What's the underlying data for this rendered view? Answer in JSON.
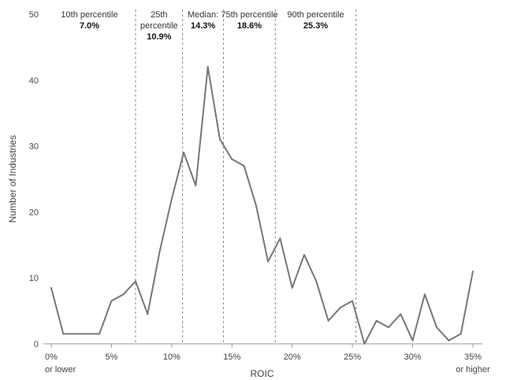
{
  "chart_data": {
    "type": "line",
    "xlabel": "ROIC",
    "ylabel": "Number of Industries",
    "xlim": [
      0,
      35
    ],
    "ylim": [
      0,
      50
    ],
    "grid": false,
    "x_tick_labels": [
      {
        "x": 0,
        "line1": "0%",
        "line2": "or lower"
      },
      {
        "x": 5,
        "line1": "5%",
        "line2": ""
      },
      {
        "x": 10,
        "line1": "10%",
        "line2": ""
      },
      {
        "x": 15,
        "line1": "15%",
        "line2": ""
      },
      {
        "x": 20,
        "line1": "20%",
        "line2": ""
      },
      {
        "x": 25,
        "line1": "25%",
        "line2": ""
      },
      {
        "x": 30,
        "line1": "30%",
        "line2": ""
      },
      {
        "x": 35,
        "line1": "35%",
        "line2": "or higher"
      }
    ],
    "y_ticks": [
      0,
      10,
      20,
      30,
      40,
      50
    ],
    "series": [
      {
        "color": "#777777",
        "x": [
          0,
          1,
          2,
          3,
          4,
          5,
          6,
          7,
          8,
          9,
          10,
          11,
          12,
          13,
          14,
          15,
          16,
          17,
          18,
          19,
          20,
          21,
          22,
          23,
          24,
          25,
          26,
          27,
          28,
          29,
          30,
          31,
          32,
          33,
          34,
          35
        ],
        "values": [
          8.5,
          1.5,
          1.5,
          1.5,
          1.5,
          6.5,
          7.5,
          9.5,
          4.5,
          14,
          22,
          29,
          24,
          42,
          31,
          28,
          27,
          21,
          12.5,
          16,
          8.5,
          13.5,
          9.5,
          3.5,
          5.5,
          6.5,
          0,
          3.5,
          2.5,
          4.5,
          0.5,
          7.5,
          2.5,
          0.5,
          1.5,
          11
        ]
      }
    ],
    "percentile_lines": [
      {
        "x": 7.0,
        "label_lines": [
          "10th percentile"
        ],
        "value": "7.0%"
      },
      {
        "x": 10.9,
        "label_lines": [
          "25th",
          "percentile"
        ],
        "value": "10.9%"
      },
      {
        "x": 14.3,
        "label_lines": [
          "Median:"
        ],
        "value": "14.3%"
      },
      {
        "x": 18.6,
        "label_lines": [
          "75th percentile"
        ],
        "value": "18.6%"
      },
      {
        "x": 25.3,
        "label_lines": [
          "90th percentile"
        ],
        "value": "25.3%"
      }
    ]
  }
}
